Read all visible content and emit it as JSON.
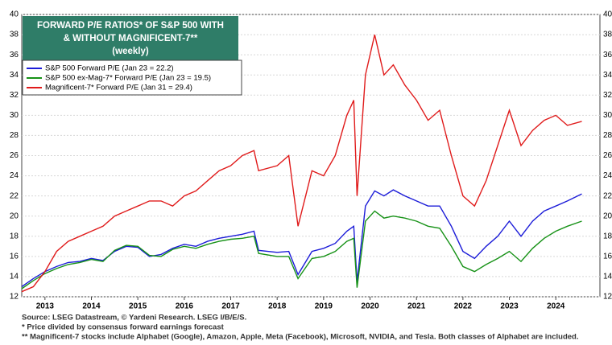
{
  "chart_data": {
    "type": "line",
    "title": [
      "FORWARD P/E RATIOS* OF S&P 500 WITH",
      "& WITHOUT MAGNIFICENT-7**",
      "(weekly)"
    ],
    "x": [
      2013.0,
      2013.25,
      2013.5,
      2013.75,
      2014.0,
      2014.25,
      2014.5,
      2014.75,
      2015.0,
      2015.25,
      2015.5,
      2015.75,
      2016.0,
      2016.25,
      2016.5,
      2016.75,
      2017.0,
      2017.25,
      2017.5,
      2017.75,
      2018.0,
      2018.1,
      2018.5,
      2018.75,
      2018.95,
      2019.25,
      2019.5,
      2019.75,
      2020.0,
      2020.15,
      2020.22,
      2020.4,
      2020.6,
      2020.8,
      2021.0,
      2021.25,
      2021.5,
      2021.75,
      2022.0,
      2022.25,
      2022.5,
      2022.75,
      2023.0,
      2023.25,
      2023.5,
      2023.75,
      2024.0,
      2024.25,
      2024.5,
      2024.75,
      2025.06
    ],
    "series": [
      {
        "name": "S&P 500 Forward P/E (Jan 23 = 22.2)",
        "color": "#1c1cd8",
        "values": [
          13.0,
          13.8,
          14.5,
          15.0,
          15.4,
          15.5,
          15.8,
          15.6,
          16.5,
          17.0,
          16.9,
          16.0,
          16.2,
          16.8,
          17.2,
          17.0,
          17.5,
          17.8,
          18.0,
          18.2,
          18.5,
          16.6,
          16.4,
          16.5,
          14.2,
          16.5,
          16.8,
          17.3,
          18.5,
          19.0,
          13.5,
          21.0,
          22.5,
          22.0,
          22.6,
          22.0,
          21.5,
          21.0,
          21.0,
          19.0,
          16.5,
          15.8,
          17.0,
          18.0,
          19.5,
          18.0,
          19.5,
          20.5,
          21.0,
          21.5,
          22.2
        ]
      },
      {
        "name": "S&P 500 ex-Mag-7* Forward P/E (Jan 23 = 19.5)",
        "color": "#179217",
        "values": [
          12.8,
          13.6,
          14.3,
          14.8,
          15.2,
          15.4,
          15.7,
          15.5,
          16.6,
          17.1,
          17.0,
          16.1,
          16.0,
          16.7,
          17.0,
          16.8,
          17.2,
          17.5,
          17.7,
          17.8,
          18.0,
          16.3,
          16.0,
          16.0,
          13.8,
          15.8,
          16.0,
          16.5,
          17.5,
          17.8,
          12.9,
          19.5,
          20.5,
          19.8,
          20.0,
          19.8,
          19.5,
          19.0,
          18.8,
          17.0,
          15.0,
          14.5,
          15.2,
          15.8,
          16.5,
          15.5,
          16.8,
          17.8,
          18.5,
          19.0,
          19.5
        ]
      },
      {
        "name": "Magnificent-7* Forward P/E (Jan 31 = 29.4)",
        "color": "#e01b1b",
        "values": [
          12.5,
          13.0,
          14.5,
          16.5,
          17.5,
          18.0,
          18.5,
          19.0,
          20.0,
          20.5,
          21.0,
          21.5,
          21.5,
          21.0,
          22.0,
          22.5,
          23.5,
          24.5,
          25.0,
          26.0,
          26.5,
          24.5,
          25.0,
          26.0,
          19.0,
          24.5,
          24.0,
          26.0,
          30.0,
          31.5,
          22.0,
          34.0,
          38.0,
          34.0,
          35.0,
          33.0,
          31.5,
          29.5,
          30.5,
          26.0,
          22.0,
          21.0,
          23.5,
          27.0,
          30.5,
          27.0,
          28.5,
          29.5,
          30.0,
          29.0,
          29.4
        ]
      }
    ],
    "xlim": [
      2013.0,
      2025.45
    ],
    "xticks": [
      {
        "value": 2013.5,
        "label": "2013"
      },
      {
        "value": 2014.5,
        "label": "2014"
      },
      {
        "value": 2015.5,
        "label": "2015"
      },
      {
        "value": 2016.5,
        "label": "2016"
      },
      {
        "value": 2017.5,
        "label": "2017"
      },
      {
        "value": 2018.5,
        "label": "2018"
      },
      {
        "value": 2019.5,
        "label": "2019"
      },
      {
        "value": 2020.5,
        "label": "2020"
      },
      {
        "value": 2021.5,
        "label": "2021"
      },
      {
        "value": 2022.5,
        "label": "2022"
      },
      {
        "value": 2023.5,
        "label": "2023"
      },
      {
        "value": 2024.5,
        "label": "2024"
      }
    ],
    "ylim": [
      12,
      40
    ],
    "yticks": [
      12,
      14,
      16,
      18,
      20,
      22,
      24,
      26,
      28,
      30,
      32,
      34,
      36,
      38,
      40
    ],
    "grid": true,
    "notes": [
      "Source: LSEG Datastream, © Yardeni Research. LSEG I/B/E/S.",
      "* Price divided by consensus forward earnings forecast",
      "** Magnificent-7 stocks include Alphabet (Google), Amazon, Apple, Meta (Facebook), Microsoft, NVIDIA, and Tesla. Both classes of Alphabet are included."
    ]
  }
}
